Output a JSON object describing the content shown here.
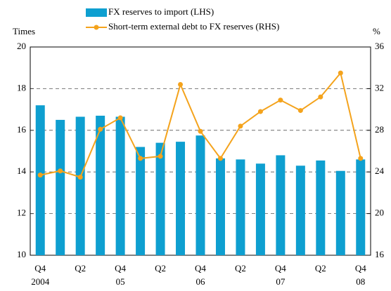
{
  "chart_data": {
    "type": "bar-line",
    "y_label": "Times",
    "y2_label": "%",
    "categories": [
      "Q4",
      null,
      "Q2",
      null,
      "Q4",
      null,
      "Q2",
      null,
      "Q4",
      null,
      "Q2",
      null,
      "Q4",
      null,
      "Q2",
      null,
      "Q4"
    ],
    "years": [
      "2004",
      null,
      null,
      null,
      "05",
      null,
      null,
      null,
      "06",
      null,
      null,
      null,
      "07",
      null,
      null,
      null,
      "08"
    ],
    "series": [
      {
        "name": "FX reserves to import (LHS)",
        "type": "bar",
        "color": "#0e9fd0",
        "values": [
          17.2,
          16.5,
          16.65,
          16.7,
          16.65,
          15.2,
          15.4,
          15.45,
          15.75,
          14.65,
          14.6,
          14.4,
          14.8,
          14.3,
          14.55,
          14.05,
          14.6
        ]
      },
      {
        "name": "Short-term external debt to FX reserves (RHS)",
        "type": "line",
        "axis": "y2",
        "color": "#f4a31c",
        "values": [
          23.7,
          24.1,
          23.5,
          28.1,
          29.2,
          25.3,
          25.5,
          32.4,
          27.9,
          25.3,
          28.4,
          29.8,
          30.9,
          29.9,
          31.2,
          33.5,
          25.3
        ]
      }
    ],
    "ylim": [
      10,
      20
    ],
    "yticks": [
      10,
      12,
      14,
      16,
      18,
      20
    ],
    "y2lim": [
      16,
      36
    ],
    "y2ticks": [
      16,
      20,
      24,
      28,
      32,
      36
    ],
    "grid": true
  }
}
